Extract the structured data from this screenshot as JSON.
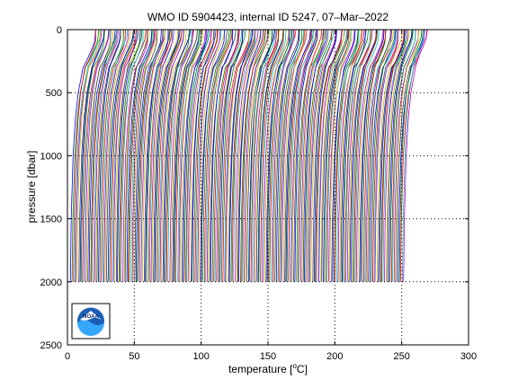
{
  "chart_data": {
    "type": "line",
    "title": "WMO ID 5904423, internal ID 5247, 07–Mar–2022",
    "xlabel_prefix": "temperature [",
    "xlabel_unit_sup": "o",
    "xlabel_suffix": "C]",
    "ylabel": "pressure [dbar]",
    "xlim": [
      0,
      300
    ],
    "ylim": [
      0,
      2500
    ],
    "y_reversed": true,
    "xticks": [
      0,
      50,
      100,
      150,
      200,
      250,
      300
    ],
    "yticks": [
      0,
      500,
      1000,
      1500,
      2000,
      2500
    ],
    "xtick_labels": [
      "0",
      "50",
      "100",
      "150",
      "200",
      "250",
      "300"
    ],
    "ytick_labels": [
      "0",
      "500",
      "1000",
      "1500",
      "2000",
      "2500"
    ],
    "grid": "dotted",
    "profile_offset_step": 1.0,
    "profile_count": 250,
    "profile_base_curve": {
      "pressure": [
        0,
        50,
        100,
        200,
        300,
        500,
        700,
        1000,
        1500,
        2000
      ],
      "temperature": [
        20.5,
        20.0,
        18.5,
        14.5,
        11.5,
        8.0,
        6.0,
        4.3,
        2.9,
        2.3
      ]
    },
    "series_colors": [
      "#0000ff",
      "#008000",
      "#ff0000",
      "#00bfbf",
      "#bf00bf",
      "#bfbf00",
      "#404040"
    ],
    "logo": {
      "name": "noaa-logo",
      "text": "NOAA"
    }
  }
}
